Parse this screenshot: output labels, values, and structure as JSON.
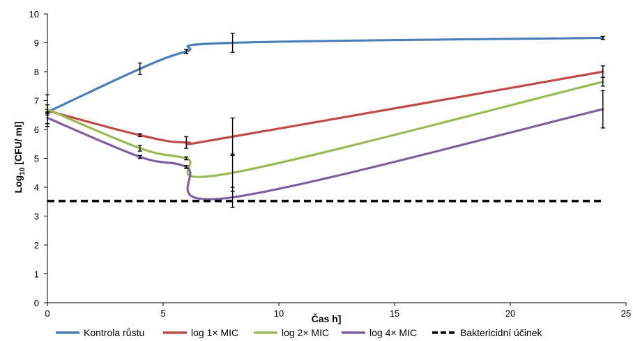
{
  "chart_data": {
    "type": "line",
    "title": "",
    "xlabel": "Čas h]",
    "ylabel_main": "Log",
    "ylabel_sub": "10",
    "ylabel_rest": " [CFU/ ml]",
    "xlim": [
      0,
      25
    ],
    "ylim": [
      0,
      10
    ],
    "xticks": [
      0,
      5,
      10,
      15,
      20,
      25
    ],
    "yticks": [
      0,
      1,
      2,
      3,
      4,
      5,
      6,
      7,
      8,
      9,
      10
    ],
    "grid": false,
    "legend_position": "bottom",
    "x": [
      0,
      4,
      6,
      8,
      24
    ],
    "series": [
      {
        "name": "Kontrola růstu",
        "color": "#4a7ebb",
        "dashed": false,
        "values": [
          6.6,
          8.1,
          8.7,
          9.0,
          9.17
        ],
        "errors": [
          0.1,
          0.2,
          0.07,
          0.33,
          0.05
        ]
      },
      {
        "name": "log 1× MIC",
        "color": "#be4b48",
        "dashed": false,
        "values": [
          6.65,
          5.8,
          5.55,
          5.75,
          8.0
        ],
        "errors": [
          0.55,
          0.05,
          0.2,
          0.65,
          0.2
        ]
      },
      {
        "name": "log 2× MIC",
        "color": "#98b954",
        "dashed": false,
        "values": [
          6.7,
          5.35,
          5.0,
          4.5,
          7.65
        ],
        "errors": [
          0.15,
          0.1,
          0.05,
          0.65,
          0.15
        ]
      },
      {
        "name": "log 4× MIC",
        "color": "#7d60a0",
        "dashed": false,
        "values": [
          6.4,
          5.05,
          4.7,
          3.65,
          6.7
        ],
        "errors": [
          0.2,
          0.05,
          0.05,
          0.35,
          0.65
        ]
      },
      {
        "name": "Baktericidní účinek",
        "color": "#000000",
        "dashed": true,
        "values": [
          3.52,
          3.52,
          3.52,
          3.52,
          3.52
        ],
        "errors": null
      }
    ]
  }
}
